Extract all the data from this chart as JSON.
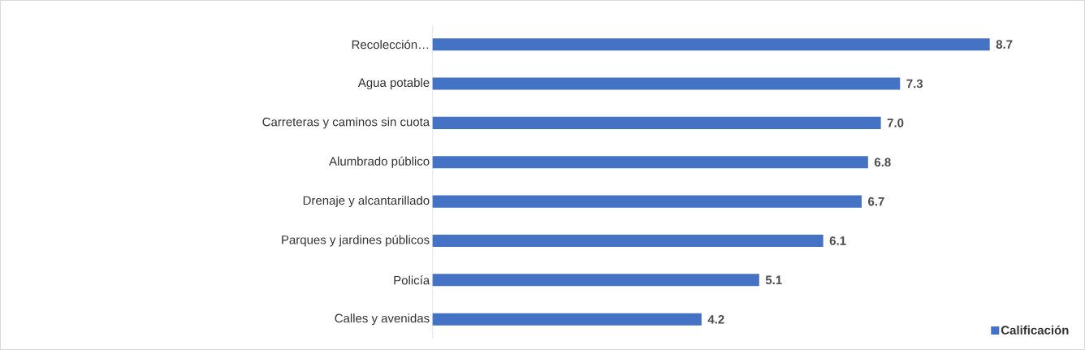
{
  "chart_data": {
    "type": "bar",
    "orientation": "horizontal",
    "categories": [
      "Recolección…",
      "Agua potable",
      "Carreteras y caminos sin cuota",
      "Alumbrado público",
      "Drenaje y alcantarillado",
      "Parques y jardines públicos",
      "Policía",
      "Calles y avenidas"
    ],
    "series": [
      {
        "name": "Calificación",
        "color": "#4472c4",
        "values": [
          8.7,
          7.3,
          7.0,
          6.8,
          6.7,
          6.1,
          5.1,
          4.2
        ],
        "value_labels": [
          "8.7",
          "7.3",
          "7.0",
          "6.8",
          "6.7",
          "6.1",
          "5.1",
          "4.2"
        ]
      }
    ],
    "legend": "bottom right"
  }
}
